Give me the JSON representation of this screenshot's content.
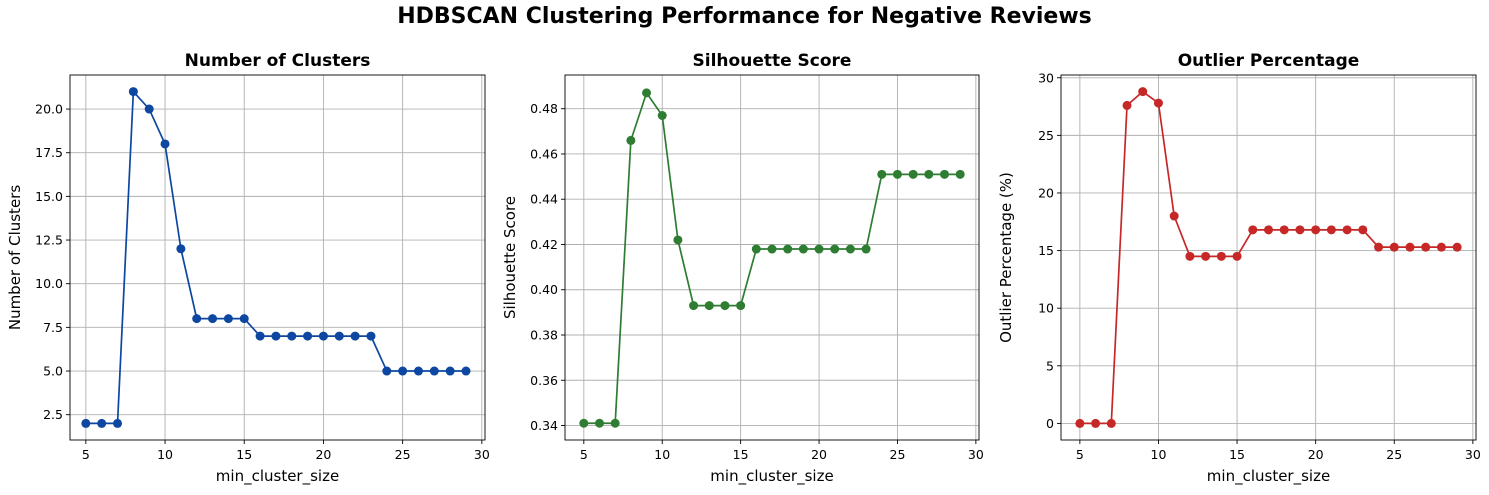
{
  "suptitle": "HDBSCAN Clustering Performance for Negative Reviews",
  "chart_data": [
    {
      "type": "line",
      "title": "Number of Clusters",
      "xlabel": "min_cluster_size",
      "ylabel": "Number of Clusters",
      "color": "#0d47a1",
      "x": [
        5,
        6,
        7,
        8,
        9,
        10,
        11,
        12,
        13,
        14,
        15,
        16,
        17,
        18,
        19,
        20,
        21,
        22,
        23,
        24,
        25,
        26,
        27,
        28,
        29
      ],
      "y": [
        2,
        2,
        2,
        21,
        20,
        18,
        12,
        8,
        8,
        8,
        8,
        7,
        7,
        7,
        7,
        7,
        7,
        7,
        7,
        5,
        5,
        5,
        5,
        5,
        5
      ],
      "xlim": [
        4,
        30.2
      ],
      "ylim": [
        1.05,
        21.95
      ],
      "xticks": [
        5,
        10,
        15,
        20,
        25,
        30
      ],
      "xtick_labels": [
        "5",
        "10",
        "15",
        "20",
        "25",
        "30"
      ],
      "yticks": [
        2.5,
        5.0,
        7.5,
        10.0,
        12.5,
        15.0,
        17.5,
        20.0
      ],
      "ytick_labels": [
        "2.5",
        "5.0",
        "7.5",
        "10.0",
        "12.5",
        "15.0",
        "17.5",
        "20.0"
      ],
      "grid": true
    },
    {
      "type": "line",
      "title": "Silhouette Score",
      "xlabel": "min_cluster_size",
      "ylabel": "Silhouette Score",
      "color": "#2e7d32",
      "x": [
        5,
        6,
        7,
        8,
        9,
        10,
        11,
        12,
        13,
        14,
        15,
        16,
        17,
        18,
        19,
        20,
        21,
        22,
        23,
        24,
        25,
        26,
        27,
        28,
        29
      ],
      "y": [
        0.341,
        0.341,
        0.341,
        0.466,
        0.487,
        0.477,
        0.422,
        0.393,
        0.393,
        0.393,
        0.393,
        0.418,
        0.418,
        0.418,
        0.418,
        0.418,
        0.418,
        0.418,
        0.418,
        0.451,
        0.451,
        0.451,
        0.451,
        0.451,
        0.451
      ],
      "xlim": [
        3.8,
        30.2
      ],
      "ylim": [
        0.3336,
        0.4949
      ],
      "xticks": [
        5,
        10,
        15,
        20,
        25,
        30
      ],
      "xtick_labels": [
        "5",
        "10",
        "15",
        "20",
        "25",
        "30"
      ],
      "yticks": [
        0.34,
        0.36,
        0.38,
        0.4,
        0.42,
        0.44,
        0.46,
        0.48
      ],
      "ytick_labels": [
        "0.34",
        "0.36",
        "0.38",
        "0.40",
        "0.42",
        "0.44",
        "0.46",
        "0.48"
      ],
      "grid": true
    },
    {
      "type": "line",
      "title": "Outlier Percentage",
      "xlabel": "min_cluster_size",
      "ylabel": "Outlier Percentage (%)",
      "color": "#c62828",
      "x": [
        5,
        6,
        7,
        8,
        9,
        10,
        11,
        12,
        13,
        14,
        15,
        16,
        17,
        18,
        19,
        20,
        21,
        22,
        23,
        24,
        25,
        26,
        27,
        28,
        29
      ],
      "y": [
        0,
        0,
        0,
        27.6,
        28.8,
        27.8,
        18.0,
        14.5,
        14.5,
        14.5,
        14.5,
        16.8,
        16.8,
        16.8,
        16.8,
        16.8,
        16.8,
        16.8,
        16.8,
        15.3,
        15.3,
        15.3,
        15.3,
        15.3,
        15.3
      ],
      "xlim": [
        3.8,
        30.2
      ],
      "ylim": [
        -1.44,
        30.24
      ],
      "xticks": [
        5,
        10,
        15,
        20,
        25,
        30
      ],
      "xtick_labels": [
        "5",
        "10",
        "15",
        "20",
        "25",
        "30"
      ],
      "yticks": [
        0,
        5,
        10,
        15,
        20,
        25,
        30
      ],
      "ytick_labels": [
        "0",
        "5",
        "10",
        "15",
        "20",
        "25",
        "30"
      ],
      "grid": true
    }
  ]
}
